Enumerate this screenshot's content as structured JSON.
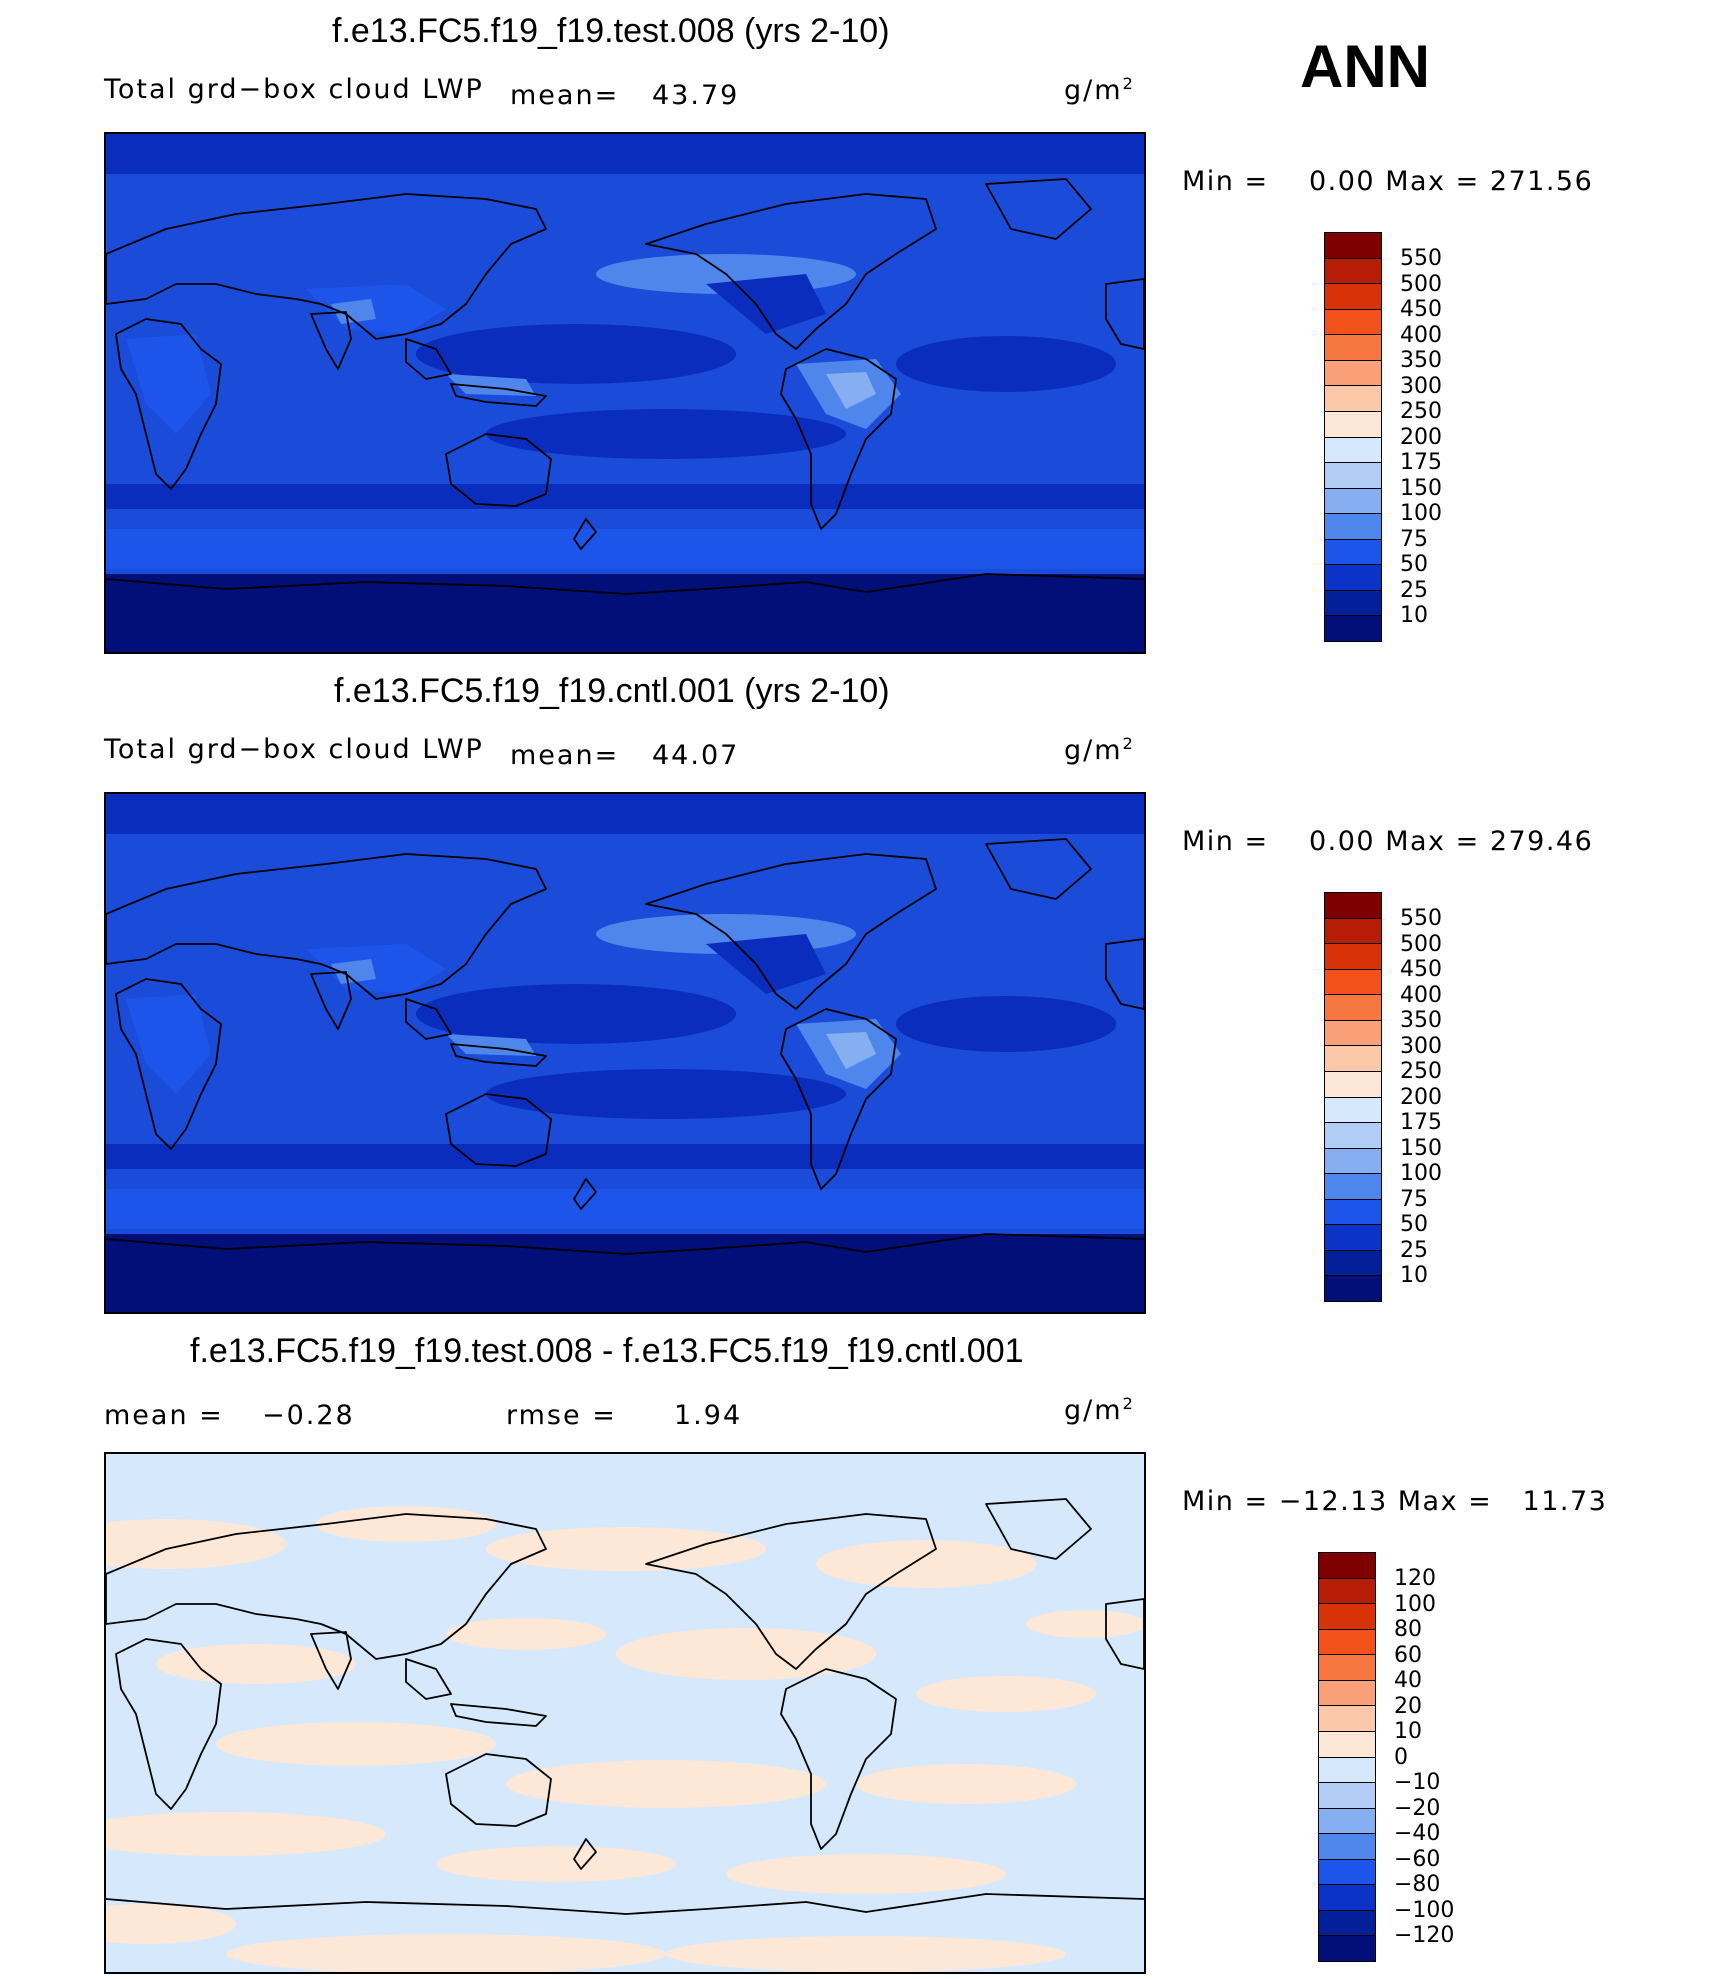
{
  "season": "ANN",
  "panels": [
    {
      "title": "f.e13.FC5.f19_f19.test.008 (yrs 2-10)",
      "left_label": "Total grd−box cloud LWP",
      "mean_label": "mean=",
      "mean_value": "43.79",
      "units": "g/m",
      "units_exp": "2",
      "min_label": "Min  =",
      "min_value": "0.00",
      "max_label": "Max  =",
      "max_value": "271.56",
      "colorbar_levels": [
        "550",
        "500",
        "450",
        "400",
        "350",
        "300",
        "250",
        "200",
        "175",
        "150",
        "100",
        "75",
        "50",
        "25",
        "10"
      ],
      "colorbar_colors": [
        "#7f0000",
        "#b71c06",
        "#d83208",
        "#f2511a",
        "#f6773f",
        "#f9a078",
        "#fbc8a8",
        "#fde8d8",
        "#d6e8fb",
        "#b1cdf6",
        "#86aff1",
        "#4f86ec",
        "#1d54ea",
        "#0b33c8",
        "#03209a",
        "#020f78"
      ],
      "map_background": "#1a4bd9",
      "map_bands": [
        "#020f78",
        "#0b2dbd",
        "#1a4bd9",
        "#1d54ea",
        "#4f86ec",
        "#86aff1"
      ]
    },
    {
      "title": "f.e13.FC5.f19_f19.cntl.001 (yrs 2-10)",
      "left_label": "Total grd−box cloud LWP",
      "mean_label": "mean=",
      "mean_value": "44.07",
      "units": "g/m",
      "units_exp": "2",
      "min_label": "Min  =",
      "min_value": "0.00",
      "max_label": "Max  =",
      "max_value": "279.46",
      "colorbar_levels": [
        "550",
        "500",
        "450",
        "400",
        "350",
        "300",
        "250",
        "200",
        "175",
        "150",
        "100",
        "75",
        "50",
        "25",
        "10"
      ],
      "colorbar_colors": [
        "#7f0000",
        "#b71c06",
        "#d83208",
        "#f2511a",
        "#f6773f",
        "#f9a078",
        "#fbc8a8",
        "#fde8d8",
        "#d6e8fb",
        "#b1cdf6",
        "#86aff1",
        "#4f86ec",
        "#1d54ea",
        "#0b33c8",
        "#03209a",
        "#020f78"
      ],
      "map_background": "#1a4bd9",
      "map_bands": [
        "#020f78",
        "#0b2dbd",
        "#1a4bd9",
        "#1d54ea",
        "#4f86ec",
        "#86aff1"
      ]
    },
    {
      "title": "f.e13.FC5.f19_f19.test.008 - f.e13.FC5.f19_f19.cntl.001",
      "mean_label": "mean  =",
      "mean_value": "−0.28",
      "rmse_label": "rmse  =",
      "rmse_value": "1.94",
      "units": "g/m",
      "units_exp": "2",
      "min_label": "Min  =",
      "min_value": "−12.13",
      "max_label": "Max  =",
      "max_value": "11.73",
      "colorbar_levels": [
        "120",
        "100",
        "80",
        "60",
        "40",
        "20",
        "10",
        "0",
        "−10",
        "−20",
        "−40",
        "−60",
        "−80",
        "−100",
        "−120"
      ],
      "colorbar_colors": [
        "#7f0000",
        "#b71c06",
        "#d83208",
        "#f2511a",
        "#f6773f",
        "#f9a078",
        "#fbc8a8",
        "#fde8d8",
        "#d6e8fb",
        "#b1cdf6",
        "#86aff1",
        "#4f86ec",
        "#1d54ea",
        "#0b33c8",
        "#03209a",
        "#020f78"
      ],
      "map_background": "#d6e8fb",
      "map_bands": [
        "#fde8d8",
        "#d6e8fb"
      ]
    }
  ]
}
